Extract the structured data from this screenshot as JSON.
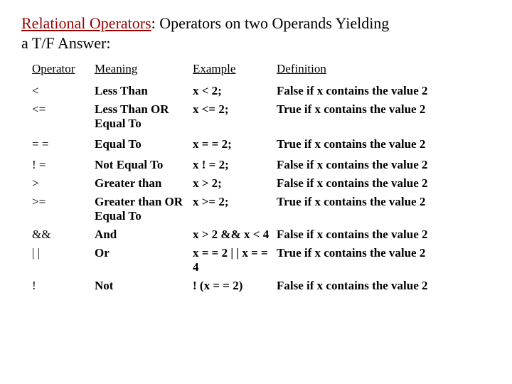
{
  "title": {
    "main": "Relational Operators",
    "separator": ": ",
    "rest": "Operators on two Operands Yielding",
    "subtitle": "a T/F Answer:"
  },
  "headers": {
    "operator": "Operator",
    "meaning": "Meaning",
    "example": "Example",
    "definition": "Definition"
  },
  "rows": [
    {
      "operator": "<",
      "meaning": "Less Than",
      "example": "x <  2;",
      "definition": "False if x contains the value 2"
    },
    {
      "operator": "<=",
      "meaning": "Less Than OR Equal To",
      "example": "x <=  2;",
      "definition": "True if x contains the value 2"
    },
    {
      "operator": "= =",
      "meaning": "Equal To",
      "example": "x = =  2;",
      "definition": "True if x contains the value 2"
    },
    {
      "operator": "! =",
      "meaning": "Not Equal To",
      "example": "x ! =  2;",
      "definition": "False if x contains the value 2"
    },
    {
      "operator": ">",
      "meaning": "Greater than",
      "example": "x > 2;",
      "definition": "False if x contains the value 2"
    },
    {
      "operator": ">=",
      "meaning": "Greater than OR Equal To",
      "example": "x >=  2;",
      "definition": "True if x contains the value 2"
    },
    {
      "operator": "&&",
      "meaning": "And",
      "example": "x > 2  && x < 4",
      "definition": "False  if x contains the value 2"
    },
    {
      "operator": "| |",
      "meaning": "Or",
      "example": "x = = 2  | | x = = 4",
      "definition": "True  if x contains the value 2"
    },
    {
      "operator": "!",
      "meaning": "Not",
      "example": "! (x = = 2)",
      "definition": "False  if x contains the value 2"
    }
  ]
}
